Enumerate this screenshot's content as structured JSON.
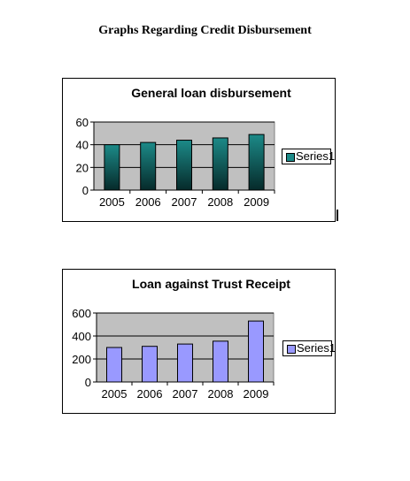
{
  "page_title": "Graphs Regarding Credit Disbursement",
  "charts": [
    {
      "title": "General loan disbursement",
      "legend_label": "Series1",
      "bar_color": "#1c8a88",
      "bar_color_dark": "#062a2a",
      "plot_bg": "#c0c0c0"
    },
    {
      "title": "Loan against Trust Receipt",
      "legend_label": "Series1",
      "bar_color": "#9999ff",
      "plot_bg": "#c0c0c0"
    }
  ],
  "chart_data": [
    {
      "type": "bar",
      "title": "General loan disbursement",
      "categories": [
        "2005",
        "2006",
        "2007",
        "2008",
        "2009"
      ],
      "series": [
        {
          "name": "Series1",
          "values": [
            40,
            42,
            44,
            46,
            49
          ]
        }
      ],
      "ylim": [
        0,
        60
      ],
      "yticks": [
        0,
        20,
        40,
        60
      ],
      "grid": true,
      "legend": "right"
    },
    {
      "type": "bar",
      "title": "Loan against Trust Receipt",
      "categories": [
        "2005",
        "2006",
        "2007",
        "2008",
        "2009"
      ],
      "series": [
        {
          "name": "Series1",
          "values": [
            300,
            310,
            330,
            355,
            530
          ]
        }
      ],
      "ylim": [
        0,
        600
      ],
      "yticks": [
        0,
        200,
        400,
        600
      ],
      "grid": true,
      "legend": "right"
    }
  ]
}
